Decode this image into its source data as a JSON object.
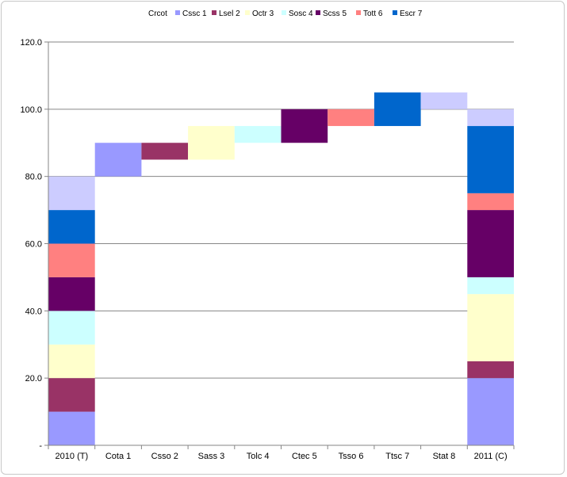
{
  "chart_data": {
    "type": "bar",
    "subtype": "stacked-waterfall",
    "legend_placement": "top",
    "legend_title": "Crcot",
    "grid": true,
    "ylim": [
      0,
      120
    ],
    "yticks": [
      "-",
      "20.0",
      "40.0",
      "60.0",
      "80.0",
      "100.0",
      "120.0"
    ],
    "categories": [
      "2010 (T)",
      "Cota 1",
      "Csso 2",
      "Sass 3",
      "Tolc 4",
      "Ctec 5",
      "Tsso 6",
      "Ttsc 7",
      "Stat 8",
      "2011 (C)"
    ],
    "series": [
      {
        "name": "Cssc 1",
        "color": "#9999ff"
      },
      {
        "name": "Lsel 2",
        "color": "#993366"
      },
      {
        "name": "Octr 3",
        "color": "#ffffcc"
      },
      {
        "name": "Sosc 4",
        "color": "#ccffff"
      },
      {
        "name": "Scss 5",
        "color": "#660066"
      },
      {
        "name": "Tott 6",
        "color": "#ff8080"
      },
      {
        "name": "Escr 7",
        "color": "#0066cc"
      },
      {
        "name": "",
        "color": "#ccccff"
      }
    ],
    "segments": [
      {
        "category": "2010 (T)",
        "series": 0,
        "from": 0,
        "to": 10
      },
      {
        "category": "2010 (T)",
        "series": 1,
        "from": 10,
        "to": 20
      },
      {
        "category": "2010 (T)",
        "series": 2,
        "from": 20,
        "to": 30
      },
      {
        "category": "2010 (T)",
        "series": 3,
        "from": 30,
        "to": 40
      },
      {
        "category": "2010 (T)",
        "series": 4,
        "from": 40,
        "to": 50
      },
      {
        "category": "2010 (T)",
        "series": 5,
        "from": 50,
        "to": 60
      },
      {
        "category": "2010 (T)",
        "series": 6,
        "from": 60,
        "to": 70
      },
      {
        "category": "2010 (T)",
        "series": 7,
        "from": 70,
        "to": 80
      },
      {
        "category": "Cota 1",
        "series": 0,
        "from": 80,
        "to": 90
      },
      {
        "category": "Csso 2",
        "series": 1,
        "from": 85,
        "to": 90
      },
      {
        "category": "Sass 3",
        "series": 2,
        "from": 85,
        "to": 95
      },
      {
        "category": "Tolc 4",
        "series": 3,
        "from": 90,
        "to": 95
      },
      {
        "category": "Ctec 5",
        "series": 4,
        "from": 90,
        "to": 100
      },
      {
        "category": "Tsso 6",
        "series": 5,
        "from": 95,
        "to": 100
      },
      {
        "category": "Ttsc 7",
        "series": 6,
        "from": 95,
        "to": 105
      },
      {
        "category": "Stat 8",
        "series": 7,
        "from": 100,
        "to": 105
      },
      {
        "category": "2011 (C)",
        "series": 0,
        "from": 0,
        "to": 20
      },
      {
        "category": "2011 (C)",
        "series": 1,
        "from": 20,
        "to": 25
      },
      {
        "category": "2011 (C)",
        "series": 2,
        "from": 25,
        "to": 45
      },
      {
        "category": "2011 (C)",
        "series": 3,
        "from": 45,
        "to": 50
      },
      {
        "category": "2011 (C)",
        "series": 4,
        "from": 50,
        "to": 70
      },
      {
        "category": "2011 (C)",
        "series": 5,
        "from": 70,
        "to": 75
      },
      {
        "category": "2011 (C)",
        "series": 6,
        "from": 75,
        "to": 95
      },
      {
        "category": "2011 (C)",
        "series": 7,
        "from": 95,
        "to": 100
      }
    ]
  }
}
